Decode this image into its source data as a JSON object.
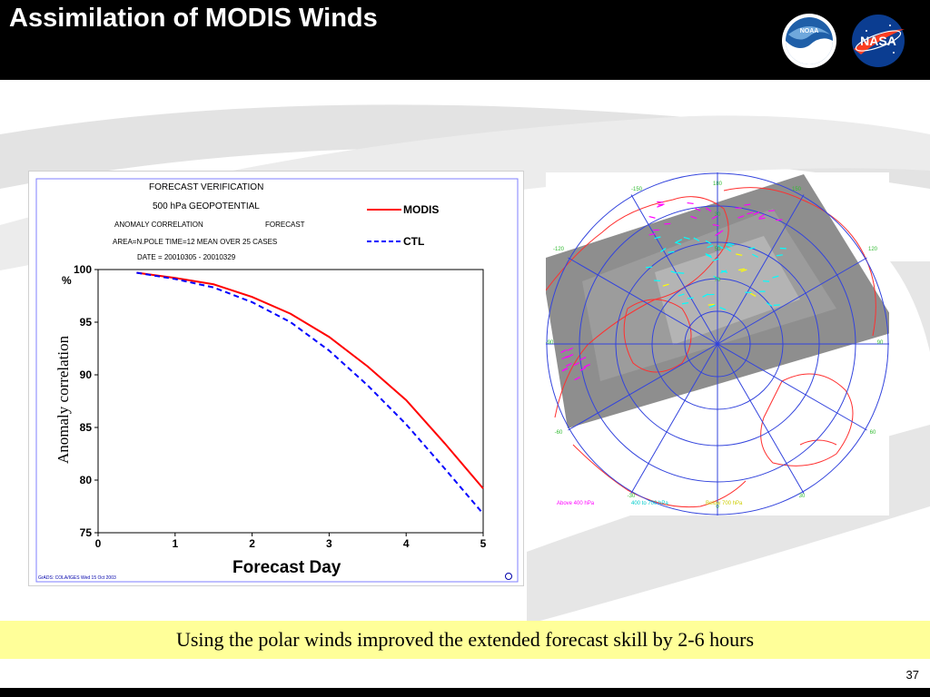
{
  "slide": {
    "title": "Assimilation of MODIS Winds",
    "caption": "Using the polar winds improved the extended forecast skill by 2-6 hours",
    "page_number": "37",
    "logos": [
      "noaa-logo",
      "nasa-logo"
    ],
    "colors": {
      "header": "#000000",
      "caption_bg": "#ffff99"
    }
  },
  "logos": {
    "noaa_text": "NOAA",
    "nasa_text": "NASA"
  },
  "chart_header": {
    "line1": "FORECAST VERIFICATION",
    "line2": "500 hPa  GEOPOTENTIAL",
    "line3a": "ANOMALY CORRELATION",
    "line3b": "FORECAST",
    "line4": "AREA=N.POLE   TIME=12   MEAN OVER  25 CASES",
    "line5": "DATE = 20010305 - 20010329"
  },
  "chart_footer_left": "GrADS: COLA/IGES    Wed 15 Oct 2003",
  "chart_data": {
    "type": "line",
    "title": "FORECAST VERIFICATION",
    "xlabel": "Forecast Day",
    "ylabel": "Anomaly correlation",
    "yunit": "%",
    "xlim": [
      0,
      5
    ],
    "ylim": [
      75,
      100
    ],
    "xticks": [
      0,
      1,
      2,
      3,
      4,
      5
    ],
    "yticks": [
      75,
      80,
      85,
      90,
      95,
      100
    ],
    "legend_position": "top-right",
    "series": [
      {
        "name": "MODIS",
        "color": "#ff0000",
        "style": "solid",
        "x": [
          0.5,
          1.0,
          1.5,
          2.0,
          2.5,
          3.0,
          3.5,
          4.0,
          4.5,
          5.0
        ],
        "y": [
          99.7,
          99.2,
          98.6,
          97.4,
          95.8,
          93.6,
          90.8,
          87.6,
          83.5,
          79.2
        ]
      },
      {
        "name": "CTL",
        "color": "#0000ff",
        "style": "dashed",
        "x": [
          0.5,
          1.0,
          1.5,
          2.0,
          2.5,
          3.0,
          3.5,
          4.0,
          4.5,
          5.0
        ],
        "y": [
          99.7,
          99.1,
          98.3,
          96.9,
          95.0,
          92.3,
          89.0,
          85.3,
          81.1,
          76.8
        ]
      }
    ]
  },
  "polar_map": {
    "lat_labels": [
      "30",
      "50",
      "70"
    ],
    "lon_labels": [
      "180",
      "150",
      "-150",
      "120",
      "-120",
      "90",
      "-90",
      "60",
      "-60",
      "30",
      "-30",
      "0"
    ],
    "legend": [
      "Above 400 hPa",
      "400 to 700 hPa",
      "Below 700 hPa"
    ],
    "legend_colors": [
      "#ff00ff",
      "#00ffff",
      "#ffff00"
    ]
  }
}
